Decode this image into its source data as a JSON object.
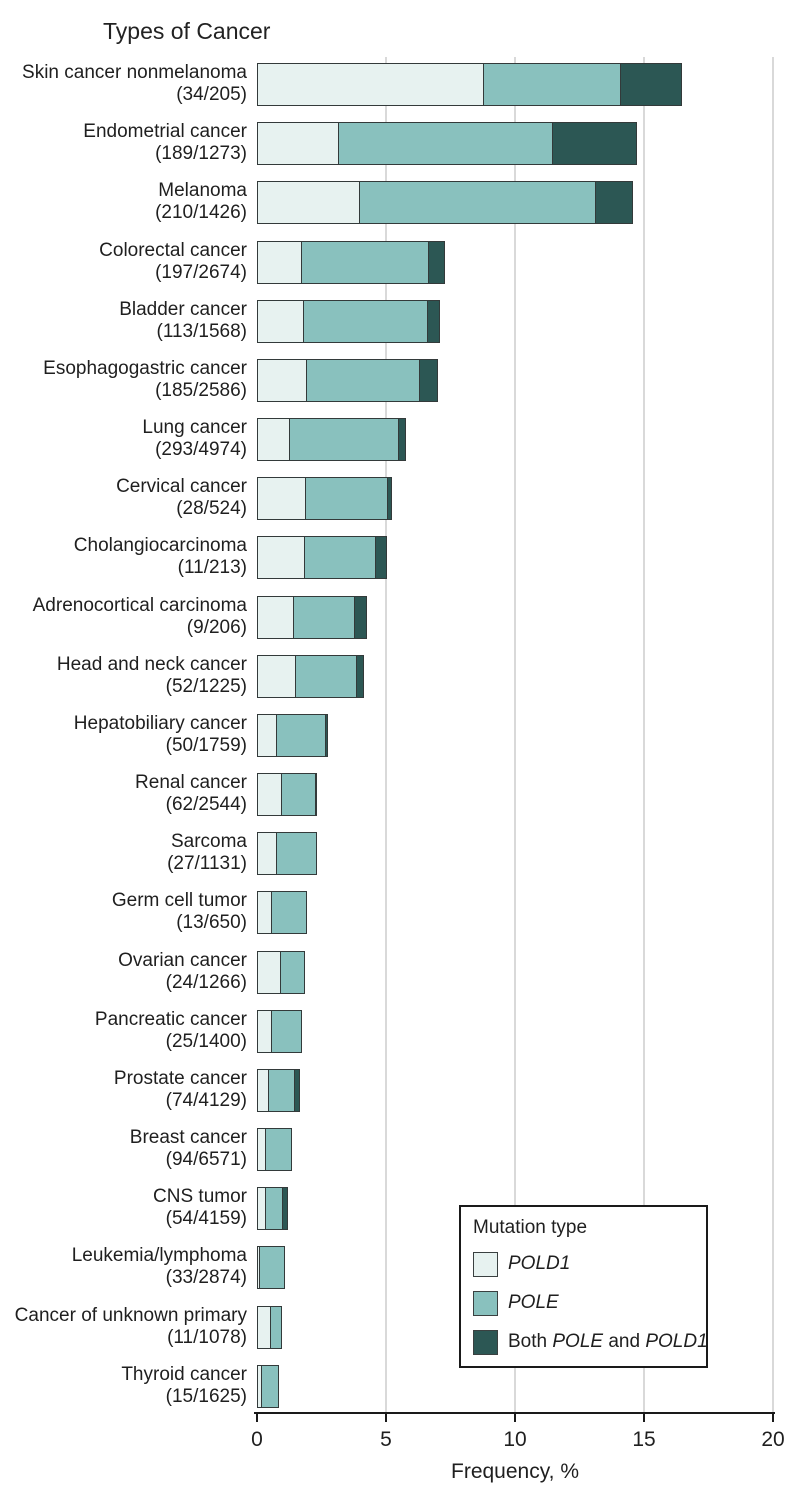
{
  "title": "Types of Cancer",
  "colors": {
    "pold1": "#e7f2f0",
    "pole": "#89c1be",
    "both": "#2c5754",
    "segment_border": "#333a3a",
    "gridline": "#d9d9d9",
    "axis": "#1a1a1a"
  },
  "legend": {
    "title": "Mutation type",
    "items": [
      {
        "key": "pold1",
        "name": "POLD1",
        "label_parts": [
          {
            "text": "POLD1",
            "italic": true
          }
        ]
      },
      {
        "key": "pole",
        "name": "POLE",
        "label_parts": [
          {
            "text": "POLE",
            "italic": true
          }
        ]
      },
      {
        "key": "both",
        "name": "Both POLE and POLD1",
        "label_parts": [
          {
            "text": "Both ",
            "italic": false
          },
          {
            "text": "POLE",
            "italic": true
          },
          {
            "text": " and ",
            "italic": false
          },
          {
            "text": "POLD1",
            "italic": true
          }
        ]
      }
    ]
  },
  "axis": {
    "label": "Frequency, %",
    "ticks": [
      0,
      5,
      10,
      15,
      20
    ]
  },
  "chart_data": {
    "type": "bar",
    "orientation": "horizontal",
    "stacked": true,
    "title": "Types of Cancer",
    "xlabel": "Frequency, %",
    "xlim": [
      0,
      20
    ],
    "x_ticks": [
      0,
      5,
      10,
      15,
      20
    ],
    "grid": "vertical",
    "legend_position": "bottom-right",
    "series_names": [
      "POLD1",
      "POLE",
      "Both POLE and POLD1"
    ],
    "rows": [
      {
        "label": "Skin cancer nonmelanoma",
        "count": "(34/205)",
        "pold1": 8.8,
        "pole": 5.4,
        "both": 2.4
      },
      {
        "label": "Endometrial cancer",
        "count": "(189/1273)",
        "pold1": 3.2,
        "pole": 8.35,
        "both": 3.3
      },
      {
        "label": "Melanoma",
        "count": "(210/1426)",
        "pold1": 4.0,
        "pole": 9.2,
        "both": 1.5
      },
      {
        "label": "Colorectal cancer",
        "count": "(197/2674)",
        "pold1": 1.75,
        "pole": 5.0,
        "both": 0.65
      },
      {
        "label": "Bladder cancer",
        "count": "(113/1568)",
        "pold1": 1.85,
        "pole": 4.85,
        "both": 0.5
      },
      {
        "label": "Esophagogastric cancer",
        "count": "(185/2586)",
        "pold1": 1.95,
        "pole": 4.45,
        "both": 0.75
      },
      {
        "label": "Lung cancer",
        "count": "(293/4974)",
        "pold1": 1.3,
        "pole": 4.3,
        "both": 0.3
      },
      {
        "label": "Cervical cancer",
        "count": "(28/524)",
        "pold1": 1.9,
        "pole": 3.25,
        "both": 0.19
      },
      {
        "label": "Cholangiocarcinoma",
        "count": "(11/213)",
        "pold1": 1.88,
        "pole": 2.82,
        "both": 0.47
      },
      {
        "label": "Adrenocortical carcinoma",
        "count": "(9/206)",
        "pold1": 1.46,
        "pole": 2.43,
        "both": 0.49
      },
      {
        "label": "Head and neck cancer",
        "count": "(52/1225)",
        "pold1": 1.55,
        "pole": 2.4,
        "both": 0.3
      },
      {
        "label": "Hepatobiliary cancer",
        "count": "(50/1759)",
        "pold1": 0.8,
        "pole": 1.95,
        "both": 0.1
      },
      {
        "label": "Renal cancer",
        "count": "(62/2544)",
        "pold1": 1.0,
        "pole": 1.35,
        "both": 0.1
      },
      {
        "label": "Sarcoma",
        "count": "(27/1131)",
        "pold1": 0.8,
        "pole": 1.6,
        "both": 0
      },
      {
        "label": "Germ cell tumor",
        "count": "(13/650)",
        "pold1": 0.6,
        "pole": 1.4,
        "both": 0
      },
      {
        "label": "Ovarian cancer",
        "count": "(24/1266)",
        "pold1": 0.95,
        "pole": 0.95,
        "both": 0
      },
      {
        "label": "Pancreatic cancer",
        "count": "(25/1400)",
        "pold1": 0.6,
        "pole": 1.2,
        "both": 0
      },
      {
        "label": "Prostate cancer",
        "count": "(74/4129)",
        "pold1": 0.5,
        "pole": 1.05,
        "both": 0.25
      },
      {
        "label": "Breast cancer",
        "count": "(94/6571)",
        "pold1": 0.35,
        "pole": 1.08,
        "both": 0
      },
      {
        "label": "CNS tumor",
        "count": "(54/4159)",
        "pold1": 0.35,
        "pole": 0.72,
        "both": 0.23
      },
      {
        "label": "Leukemia/lymphoma",
        "count": "(33/2874)",
        "pold1": 0.15,
        "pole": 1.0,
        "both": 0
      },
      {
        "label": "Cancer of unknown primary",
        "count": "(11/1078)",
        "pold1": 0.55,
        "pole": 0.47,
        "both": 0
      },
      {
        "label": "Thyroid cancer",
        "count": "(15/1625)",
        "pold1": 0.2,
        "pole": 0.72,
        "both": 0
      }
    ]
  }
}
